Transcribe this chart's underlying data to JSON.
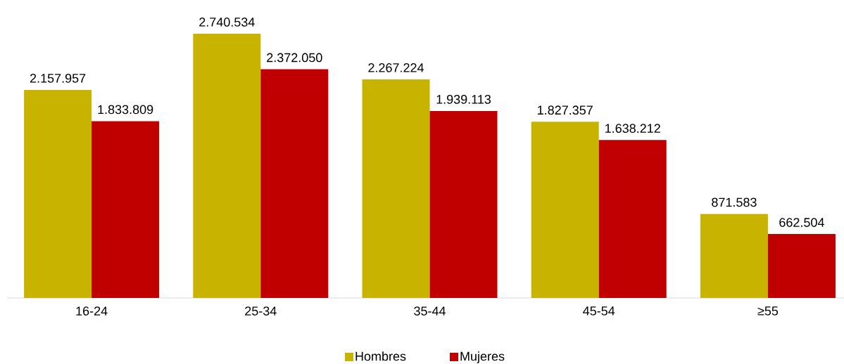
{
  "chart_data": {
    "type": "bar",
    "categories": [
      "16-24",
      "25-34",
      "35-44",
      "45-54",
      "≥55"
    ],
    "series": [
      {
        "name": "Hombres",
        "color": "#c8b400",
        "values": [
          2157957,
          2740534,
          2267224,
          1827357,
          871583
        ],
        "value_labels": [
          "2.157.957",
          "2.740.534",
          "2.267.224",
          "1.827.357",
          "871.583"
        ]
      },
      {
        "name": "Mujeres",
        "color": "#c00000",
        "values": [
          1833809,
          2372050,
          1939113,
          1638212,
          662504
        ],
        "value_labels": [
          "1.833.809",
          "2.372.050",
          "1.939.113",
          "1.638.212",
          "662.504"
        ]
      }
    ],
    "legend": "bottom"
  }
}
